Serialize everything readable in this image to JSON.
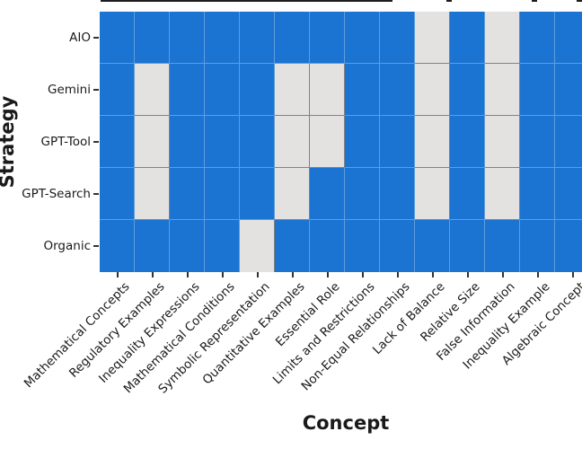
{
  "chart_data": {
    "type": "heatmap",
    "title": "",
    "xlabel": "Concept",
    "ylabel": "Strategy",
    "x_categories": [
      "Mathematical Concepts",
      "Regulatory Examples",
      "Inequality Expressions",
      "Mathematical Conditions",
      "Symbolic Representation",
      "Quantitative Examples",
      "Essential Role",
      "Limits and Restrictions",
      "Non-Equal Relationships",
      "Lack of Balance",
      "Relative Size",
      "False Information",
      "Inequality Example",
      "Algebraic Concept"
    ],
    "y_categories": [
      "AIO",
      "Gemini",
      "GPT-Tool",
      "GPT-Search",
      "Organic"
    ],
    "values": [
      [
        1,
        1,
        1,
        1,
        1,
        1,
        1,
        1,
        1,
        0,
        1,
        0,
        1,
        1
      ],
      [
        1,
        0,
        1,
        1,
        1,
        0,
        0,
        1,
        1,
        0,
        1,
        0,
        1,
        1
      ],
      [
        1,
        0,
        1,
        1,
        1,
        0,
        0,
        1,
        1,
        0,
        1,
        0,
        1,
        1
      ],
      [
        1,
        0,
        1,
        1,
        1,
        0,
        1,
        1,
        1,
        0,
        1,
        0,
        1,
        1
      ],
      [
        1,
        1,
        1,
        1,
        0,
        1,
        1,
        1,
        1,
        1,
        1,
        1,
        1,
        1
      ]
    ],
    "value_meaning": {
      "1": "present (blue cell)",
      "0": "absent (light gray cell)"
    },
    "cell_colors": {
      "present": "#1b73d2",
      "absent": "#e3e2e0"
    },
    "x_tick_rotation_deg": 45,
    "grid": true,
    "legend": "none"
  }
}
